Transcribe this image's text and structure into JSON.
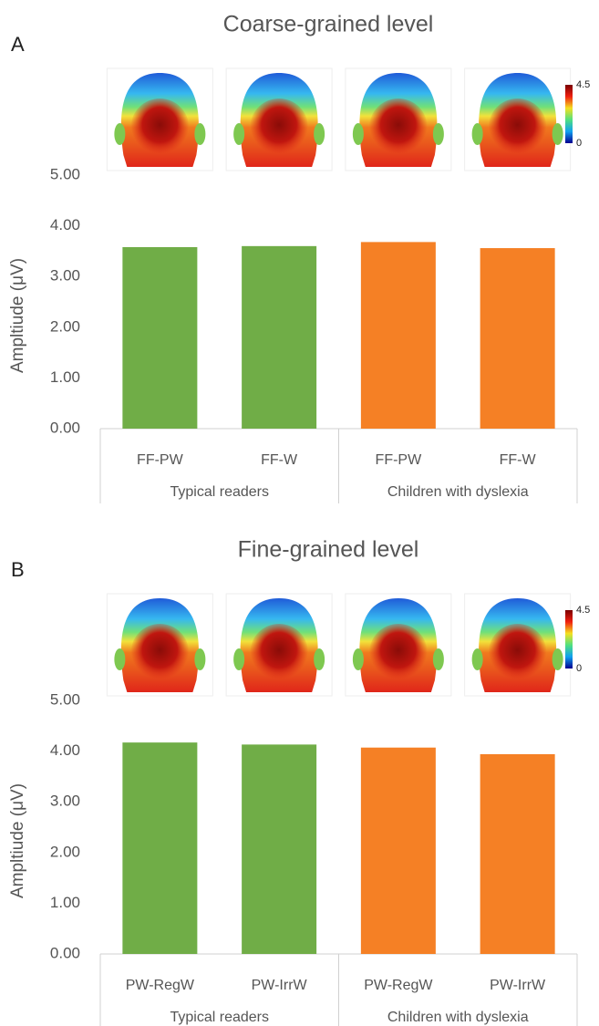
{
  "chart_data": [
    {
      "type": "bar",
      "panel_label": "A",
      "title": "Coarse-grained level",
      "y_label": "Ampltiude (μV)",
      "categories": [
        "FF-PW",
        "FF-W",
        "FF-PW",
        "FF-W"
      ],
      "groups": [
        "Typical readers",
        "Children with dyslexia"
      ],
      "values": [
        3.58,
        3.6,
        3.68,
        3.56
      ],
      "colors": [
        "#70ad47",
        "#70ad47",
        "#f58025",
        "#f58025"
      ],
      "ylim": [
        0,
        5
      ],
      "yticks": [
        {
          "value": 0,
          "label": "0.00"
        },
        {
          "value": 1,
          "label": "1.00"
        },
        {
          "value": 2,
          "label": "2.00"
        },
        {
          "value": 3,
          "label": "3.00"
        },
        {
          "value": 4,
          "label": "4.00"
        },
        {
          "value": 5,
          "label": "5.00"
        }
      ],
      "colorbar": {
        "ticks": [
          4.5,
          0
        ]
      }
    },
    {
      "type": "bar",
      "panel_label": "B",
      "title": "Fine-grained level",
      "y_label": "Ampltiude (μV)",
      "categories": [
        "PW-RegW",
        "PW-IrrW",
        "PW-RegW",
        "PW-IrrW"
      ],
      "groups": [
        "Typical readers",
        "Children with dyslexia"
      ],
      "values": [
        4.17,
        4.13,
        4.07,
        3.94
      ],
      "colors": [
        "#70ad47",
        "#70ad47",
        "#f58025",
        "#f58025"
      ],
      "ylim": [
        0,
        5
      ],
      "yticks": [
        {
          "value": 0,
          "label": "0.00"
        },
        {
          "value": 1,
          "label": "1.00"
        },
        {
          "value": 2,
          "label": "2.00"
        },
        {
          "value": 3,
          "label": "3.00"
        },
        {
          "value": 4,
          "label": "4.00"
        },
        {
          "value": 5,
          "label": "5.00"
        }
      ],
      "colorbar": {
        "ticks": [
          4.5,
          0
        ]
      }
    }
  ]
}
